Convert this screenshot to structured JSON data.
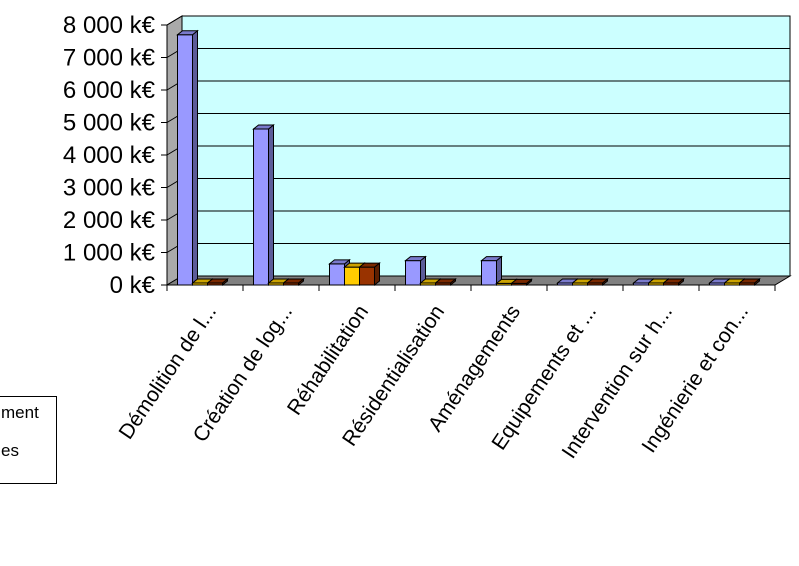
{
  "chart_data": {
    "type": "bar",
    "title": "",
    "xlabel": "",
    "ylabel": "",
    "categories": [
      "Démolition de l...",
      "Création de log...",
      "Réhabilitation",
      "Résidentialisation",
      "Aménagements",
      "Equipements et ...",
      "Intervention sur h...",
      "Ingénierie et con..."
    ],
    "series": [
      {
        "color": "#9999ff",
        "values": [
          7700,
          4800,
          650,
          750,
          750,
          0,
          0,
          0
        ]
      },
      {
        "color": "#ffcc00",
        "values": [
          0,
          0,
          550,
          0,
          50,
          0,
          0,
          0
        ]
      },
      {
        "color": "#993300",
        "values": [
          0,
          0,
          550,
          0,
          50,
          0,
          0,
          0
        ]
      }
    ],
    "ylim": [
      0,
      8000
    ],
    "yticks": [
      0,
      1000,
      2000,
      3000,
      4000,
      5000,
      6000,
      7000,
      8000
    ],
    "ytick_labels": [
      "0 k€",
      "1 000 k€",
      "2 000 k€",
      "3 000 k€",
      "4 000 k€",
      "5 000 k€",
      "6 000 k€",
      "7 000 k€",
      "8 000 k€"
    ],
    "grid": true,
    "plot_background": "#ccffff",
    "legend_visible_text": [
      "ment",
      "es"
    ],
    "legend_position": "bottom-left"
  }
}
